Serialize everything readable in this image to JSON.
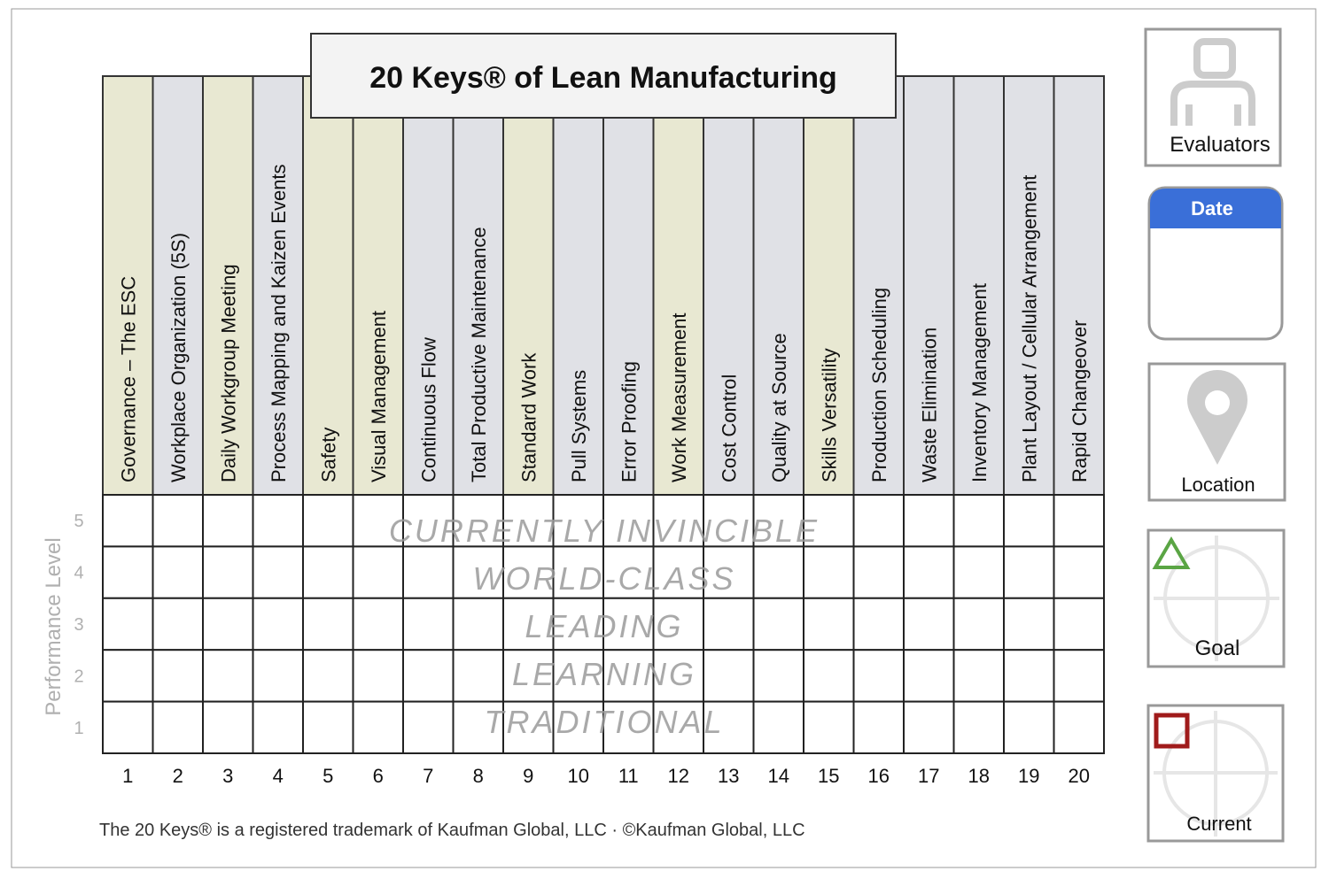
{
  "title": "20 Keys® of Lean Manufacturing",
  "keys": [
    {
      "number": 1,
      "label": "Governance – The ESC",
      "color": "#e8e8d2"
    },
    {
      "number": 2,
      "label": "Workplace Organization (5S)",
      "color": "#e0e1e6"
    },
    {
      "number": 3,
      "label": "Daily Workgroup Meeting",
      "color": "#e8e8d2"
    },
    {
      "number": 4,
      "label": "Process Mapping and Kaizen Events",
      "color": "#e0e1e6"
    },
    {
      "number": 5,
      "label": "Safety",
      "color": "#e8e8d2"
    },
    {
      "number": 6,
      "label": "Visual Management",
      "color": "#e8e8d2"
    },
    {
      "number": 7,
      "label": "Continuous Flow",
      "color": "#e0e1e6"
    },
    {
      "number": 8,
      "label": "Total Productive Maintenance",
      "color": "#e0e1e6"
    },
    {
      "number": 9,
      "label": "Standard Work",
      "color": "#e8e8d2"
    },
    {
      "number": 10,
      "label": "Pull Systems",
      "color": "#e0e1e6"
    },
    {
      "number": 11,
      "label": "Error Proofing",
      "color": "#e0e1e6"
    },
    {
      "number": 12,
      "label": "Work Measurement",
      "color": "#e8e8d2"
    },
    {
      "number": 13,
      "label": "Cost Control",
      "color": "#e0e1e6"
    },
    {
      "number": 14,
      "label": "Quality at Source",
      "color": "#e0e1e6"
    },
    {
      "number": 15,
      "label": "Skills Versatility",
      "color": "#e8e8d2"
    },
    {
      "number": 16,
      "label": "Production Scheduling",
      "color": "#e0e1e6"
    },
    {
      "number": 17,
      "label": "Waste Elimination",
      "color": "#e0e1e6"
    },
    {
      "number": 18,
      "label": "Inventory Management",
      "color": "#e0e1e6"
    },
    {
      "number": 19,
      "label": "Plant Layout / Cellular Arrangement",
      "color": "#e0e1e6"
    },
    {
      "number": 20,
      "label": "Rapid Changeover",
      "color": "#e0e1e6"
    }
  ],
  "levels": [
    {
      "number": 5,
      "name": "CURRENTLY INVINCIBLE"
    },
    {
      "number": 4,
      "name": "WORLD-CLASS"
    },
    {
      "number": 3,
      "name": "LEADING"
    },
    {
      "number": 2,
      "name": "LEARNING"
    },
    {
      "number": 1,
      "name": "TRADITIONAL"
    }
  ],
  "y_label": "Performance Level",
  "footer": "The 20 Keys® is a registered trademark of Kaufman Global, LLC · ©Kaufman Global, LLC",
  "panels": {
    "evaluators": "Evaluators",
    "date": "Date",
    "location": "Location",
    "goal": "Goal",
    "current": "Current"
  }
}
